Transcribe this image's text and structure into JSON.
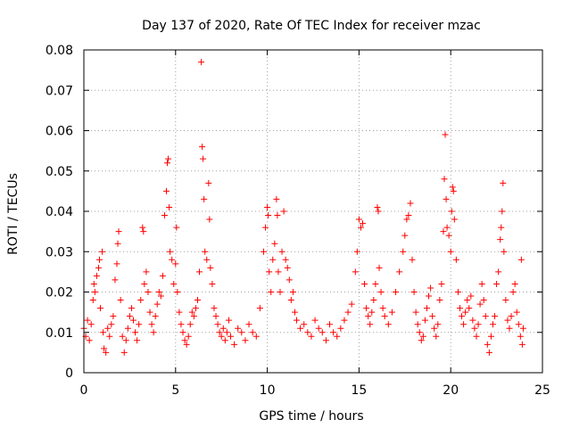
{
  "chart_data": {
    "type": "scatter",
    "title": "Day 137 of 2020, Rate Of TEC Index for receiver mzac",
    "xlabel": "GPS time / hours",
    "ylabel": "ROTI / TECUs",
    "xlim": [
      0,
      25
    ],
    "ylim": [
      0,
      0.08
    ],
    "xticks": [
      0,
      5,
      10,
      15,
      20,
      25
    ],
    "xtick_labels": [
      "0",
      "5",
      "10",
      "15",
      "20",
      "25"
    ],
    "yticks": [
      0,
      0.01,
      0.02,
      0.03,
      0.04,
      0.05,
      0.06,
      0.07,
      0.08
    ],
    "ytick_labels": [
      "0",
      "0.01",
      "0.02",
      "0.03",
      "0.04",
      "0.05",
      "0.06",
      "0.07",
      "0.08"
    ],
    "grid": true,
    "marker": "+",
    "series": [
      {
        "name": "ROTI",
        "color": "#ff0000",
        "points": [
          [
            0.0,
            0.011
          ],
          [
            0.1,
            0.009
          ],
          [
            0.2,
            0.013
          ],
          [
            0.3,
            0.008
          ],
          [
            0.4,
            0.012
          ],
          [
            0.5,
            0.018
          ],
          [
            0.55,
            0.022
          ],
          [
            0.6,
            0.02
          ],
          [
            0.7,
            0.024
          ],
          [
            0.8,
            0.026
          ],
          [
            0.85,
            0.028
          ],
          [
            0.9,
            0.016
          ],
          [
            1.0,
            0.03
          ],
          [
            1.05,
            0.01
          ],
          [
            1.1,
            0.006
          ],
          [
            1.2,
            0.005
          ],
          [
            1.3,
            0.011
          ],
          [
            1.4,
            0.009
          ],
          [
            1.5,
            0.012
          ],
          [
            1.6,
            0.014
          ],
          [
            1.7,
            0.023
          ],
          [
            1.8,
            0.027
          ],
          [
            1.85,
            0.032
          ],
          [
            1.9,
            0.035
          ],
          [
            2.0,
            0.018
          ],
          [
            2.1,
            0.009
          ],
          [
            2.2,
            0.005
          ],
          [
            2.3,
            0.008
          ],
          [
            2.4,
            0.011
          ],
          [
            2.5,
            0.014
          ],
          [
            2.6,
            0.016
          ],
          [
            2.7,
            0.013
          ],
          [
            2.8,
            0.01
          ],
          [
            2.9,
            0.008
          ],
          [
            3.0,
            0.012
          ],
          [
            3.1,
            0.018
          ],
          [
            3.2,
            0.036
          ],
          [
            3.25,
            0.035
          ],
          [
            3.3,
            0.022
          ],
          [
            3.4,
            0.025
          ],
          [
            3.5,
            0.02
          ],
          [
            3.6,
            0.015
          ],
          [
            3.7,
            0.012
          ],
          [
            3.8,
            0.01
          ],
          [
            3.9,
            0.014
          ],
          [
            4.0,
            0.017
          ],
          [
            4.1,
            0.02
          ],
          [
            4.2,
            0.019
          ],
          [
            4.3,
            0.024
          ],
          [
            4.4,
            0.039
          ],
          [
            4.5,
            0.045
          ],
          [
            4.55,
            0.052
          ],
          [
            4.6,
            0.053
          ],
          [
            4.65,
            0.041
          ],
          [
            4.7,
            0.03
          ],
          [
            4.8,
            0.028
          ],
          [
            4.9,
            0.022
          ],
          [
            5.0,
            0.027
          ],
          [
            5.05,
            0.036
          ],
          [
            5.1,
            0.02
          ],
          [
            5.2,
            0.015
          ],
          [
            5.3,
            0.012
          ],
          [
            5.4,
            0.01
          ],
          [
            5.5,
            0.008
          ],
          [
            5.6,
            0.007
          ],
          [
            5.7,
            0.009
          ],
          [
            5.8,
            0.012
          ],
          [
            5.9,
            0.015
          ],
          [
            6.0,
            0.014
          ],
          [
            6.1,
            0.016
          ],
          [
            6.2,
            0.018
          ],
          [
            6.3,
            0.025
          ],
          [
            6.4,
            0.077
          ],
          [
            6.45,
            0.056
          ],
          [
            6.5,
            0.053
          ],
          [
            6.55,
            0.043
          ],
          [
            6.6,
            0.03
          ],
          [
            6.7,
            0.028
          ],
          [
            6.8,
            0.047
          ],
          [
            6.85,
            0.038
          ],
          [
            6.9,
            0.026
          ],
          [
            7.0,
            0.022
          ],
          [
            7.1,
            0.016
          ],
          [
            7.2,
            0.014
          ],
          [
            7.3,
            0.012
          ],
          [
            7.4,
            0.01
          ],
          [
            7.5,
            0.009
          ],
          [
            7.6,
            0.011
          ],
          [
            7.7,
            0.008
          ],
          [
            7.8,
            0.01
          ],
          [
            7.9,
            0.013
          ],
          [
            8.0,
            0.009
          ],
          [
            8.2,
            0.007
          ],
          [
            8.4,
            0.011
          ],
          [
            8.6,
            0.01
          ],
          [
            8.8,
            0.008
          ],
          [
            9.0,
            0.012
          ],
          [
            9.2,
            0.01
          ],
          [
            9.4,
            0.009
          ],
          [
            9.6,
            0.016
          ],
          [
            9.8,
            0.03
          ],
          [
            9.9,
            0.036
          ],
          [
            10.0,
            0.041
          ],
          [
            10.05,
            0.039
          ],
          [
            10.1,
            0.025
          ],
          [
            10.2,
            0.02
          ],
          [
            10.3,
            0.028
          ],
          [
            10.4,
            0.032
          ],
          [
            10.5,
            0.043
          ],
          [
            10.55,
            0.039
          ],
          [
            10.6,
            0.025
          ],
          [
            10.7,
            0.02
          ],
          [
            10.8,
            0.03
          ],
          [
            10.9,
            0.04
          ],
          [
            11.0,
            0.028
          ],
          [
            11.1,
            0.026
          ],
          [
            11.2,
            0.023
          ],
          [
            11.3,
            0.018
          ],
          [
            11.4,
            0.02
          ],
          [
            11.5,
            0.015
          ],
          [
            11.6,
            0.013
          ],
          [
            11.8,
            0.011
          ],
          [
            12.0,
            0.012
          ],
          [
            12.2,
            0.01
          ],
          [
            12.4,
            0.009
          ],
          [
            12.6,
            0.013
          ],
          [
            12.8,
            0.011
          ],
          [
            13.0,
            0.01
          ],
          [
            13.2,
            0.008
          ],
          [
            13.4,
            0.012
          ],
          [
            13.6,
            0.01
          ],
          [
            13.8,
            0.009
          ],
          [
            14.0,
            0.011
          ],
          [
            14.2,
            0.013
          ],
          [
            14.4,
            0.015
          ],
          [
            14.6,
            0.017
          ],
          [
            14.8,
            0.025
          ],
          [
            14.9,
            0.03
          ],
          [
            15.0,
            0.038
          ],
          [
            15.1,
            0.036
          ],
          [
            15.2,
            0.037
          ],
          [
            15.3,
            0.022
          ],
          [
            15.4,
            0.016
          ],
          [
            15.5,
            0.014
          ],
          [
            15.6,
            0.012
          ],
          [
            15.7,
            0.015
          ],
          [
            15.8,
            0.018
          ],
          [
            15.9,
            0.022
          ],
          [
            16.0,
            0.041
          ],
          [
            16.05,
            0.04
          ],
          [
            16.1,
            0.026
          ],
          [
            16.2,
            0.02
          ],
          [
            16.3,
            0.016
          ],
          [
            16.4,
            0.014
          ],
          [
            16.6,
            0.012
          ],
          [
            16.8,
            0.015
          ],
          [
            17.0,
            0.02
          ],
          [
            17.2,
            0.025
          ],
          [
            17.4,
            0.03
          ],
          [
            17.5,
            0.034
          ],
          [
            17.6,
            0.038
          ],
          [
            17.7,
            0.039
          ],
          [
            17.8,
            0.042
          ],
          [
            17.9,
            0.028
          ],
          [
            18.0,
            0.02
          ],
          [
            18.1,
            0.015
          ],
          [
            18.2,
            0.012
          ],
          [
            18.3,
            0.01
          ],
          [
            18.4,
            0.008
          ],
          [
            18.5,
            0.009
          ],
          [
            18.6,
            0.013
          ],
          [
            18.7,
            0.016
          ],
          [
            18.8,
            0.019
          ],
          [
            18.9,
            0.021
          ],
          [
            19.0,
            0.014
          ],
          [
            19.1,
            0.011
          ],
          [
            19.2,
            0.009
          ],
          [
            19.3,
            0.012
          ],
          [
            19.4,
            0.018
          ],
          [
            19.5,
            0.022
          ],
          [
            19.6,
            0.035
          ],
          [
            19.65,
            0.048
          ],
          [
            19.7,
            0.059
          ],
          [
            19.75,
            0.043
          ],
          [
            19.8,
            0.036
          ],
          [
            19.9,
            0.034
          ],
          [
            20.0,
            0.03
          ],
          [
            20.05,
            0.04
          ],
          [
            20.1,
            0.046
          ],
          [
            20.15,
            0.045
          ],
          [
            20.2,
            0.038
          ],
          [
            20.3,
            0.028
          ],
          [
            20.4,
            0.02
          ],
          [
            20.5,
            0.016
          ],
          [
            20.6,
            0.014
          ],
          [
            20.7,
            0.012
          ],
          [
            20.8,
            0.015
          ],
          [
            20.9,
            0.018
          ],
          [
            21.0,
            0.016
          ],
          [
            21.1,
            0.019
          ],
          [
            21.2,
            0.013
          ],
          [
            21.3,
            0.011
          ],
          [
            21.4,
            0.009
          ],
          [
            21.5,
            0.012
          ],
          [
            21.6,
            0.017
          ],
          [
            21.7,
            0.022
          ],
          [
            21.8,
            0.018
          ],
          [
            21.9,
            0.014
          ],
          [
            22.0,
            0.007
          ],
          [
            22.1,
            0.005
          ],
          [
            22.2,
            0.009
          ],
          [
            22.3,
            0.012
          ],
          [
            22.4,
            0.014
          ],
          [
            22.5,
            0.022
          ],
          [
            22.6,
            0.025
          ],
          [
            22.7,
            0.033
          ],
          [
            22.75,
            0.036
          ],
          [
            22.8,
            0.04
          ],
          [
            22.85,
            0.047
          ],
          [
            22.9,
            0.03
          ],
          [
            23.0,
            0.018
          ],
          [
            23.1,
            0.013
          ],
          [
            23.2,
            0.011
          ],
          [
            23.3,
            0.014
          ],
          [
            23.4,
            0.02
          ],
          [
            23.5,
            0.022
          ],
          [
            23.6,
            0.015
          ],
          [
            23.7,
            0.012
          ],
          [
            23.8,
            0.009
          ],
          [
            23.85,
            0.028
          ],
          [
            23.9,
            0.007
          ],
          [
            23.95,
            0.011
          ]
        ]
      }
    ]
  }
}
